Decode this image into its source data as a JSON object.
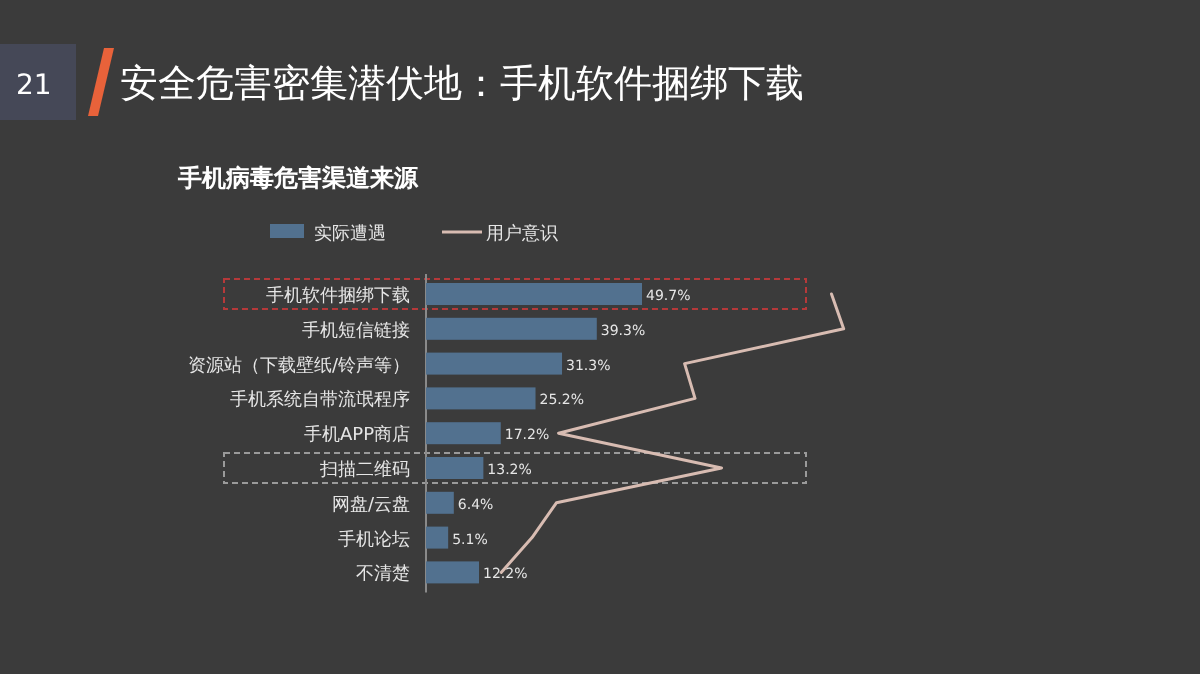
{
  "chart_data": {
    "type": "bar",
    "orientation": "horizontal",
    "title": "安全危害密集潜伏地：手机软件捆绑下载",
    "subtitle": "手机病毒危害渠道来源",
    "annotations": [
      "21"
    ],
    "categories": [
      "手机软件捆绑下载",
      "手机短信链接",
      "资源站（下载壁纸/铃声等）",
      "手机系统自带流氓程序",
      "手机APP商店",
      "扫描二维码",
      "网盘/云盘",
      "手机论坛",
      "不清楚"
    ],
    "series": [
      {
        "name": "实际遭遇",
        "color": "#52718f",
        "values": [
          49.7,
          39.3,
          31.3,
          25.2,
          17.2,
          13.2,
          6.4,
          5.1,
          12.2
        ],
        "value_labels": [
          "49.7%",
          "39.3%",
          "31.3%",
          "25.2%",
          "17.2%",
          "13.2%",
          "6.4%",
          "5.1%",
          "12.2%"
        ]
      },
      {
        "name": "用户意识",
        "type": "line",
        "color": "#d8bcb2",
        "values": [
          93.3,
          96.1,
          59.5,
          61.9,
          30.5,
          68.0,
          30.0,
          24.4,
          17.3
        ]
      }
    ],
    "legend": "top left"
  }
}
